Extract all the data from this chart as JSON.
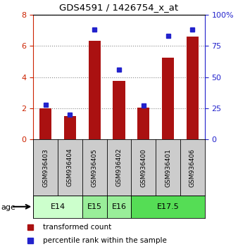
{
  "title": "GDS4591 / 1426754_x_at",
  "samples": [
    "GSM936403",
    "GSM936404",
    "GSM936405",
    "GSM936402",
    "GSM936400",
    "GSM936401",
    "GSM936406"
  ],
  "transformed_counts": [
    2.0,
    1.5,
    6.35,
    3.75,
    2.05,
    5.25,
    6.6
  ],
  "percentile_ranks": [
    28,
    20,
    88,
    56,
    27,
    83,
    88
  ],
  "age_groups": [
    {
      "label": "E14",
      "samples": [
        0,
        1
      ],
      "color": "#ccffcc"
    },
    {
      "label": "E15",
      "samples": [
        2
      ],
      "color": "#99ee99"
    },
    {
      "label": "E16",
      "samples": [
        3
      ],
      "color": "#99ee99"
    },
    {
      "label": "E17.5",
      "samples": [
        4,
        5,
        6
      ],
      "color": "#55dd55"
    }
  ],
  "bar_color": "#aa1111",
  "dot_color": "#2222cc",
  "ylim_left": [
    0,
    8
  ],
  "ylim_right": [
    0,
    100
  ],
  "yticks_left": [
    0,
    2,
    4,
    6,
    8
  ],
  "yticks_right": [
    0,
    25,
    50,
    75,
    100
  ],
  "left_axis_color": "#cc2200",
  "right_axis_color": "#2222cc",
  "grid_color": "#888888",
  "bar_width": 0.5,
  "legend_items": [
    {
      "label": "transformed count",
      "color": "#aa1111"
    },
    {
      "label": "percentile rank within the sample",
      "color": "#2222cc"
    }
  ],
  "sample_area_color": "#cccccc",
  "fig_width": 3.38,
  "fig_height": 3.54,
  "dpi": 100
}
